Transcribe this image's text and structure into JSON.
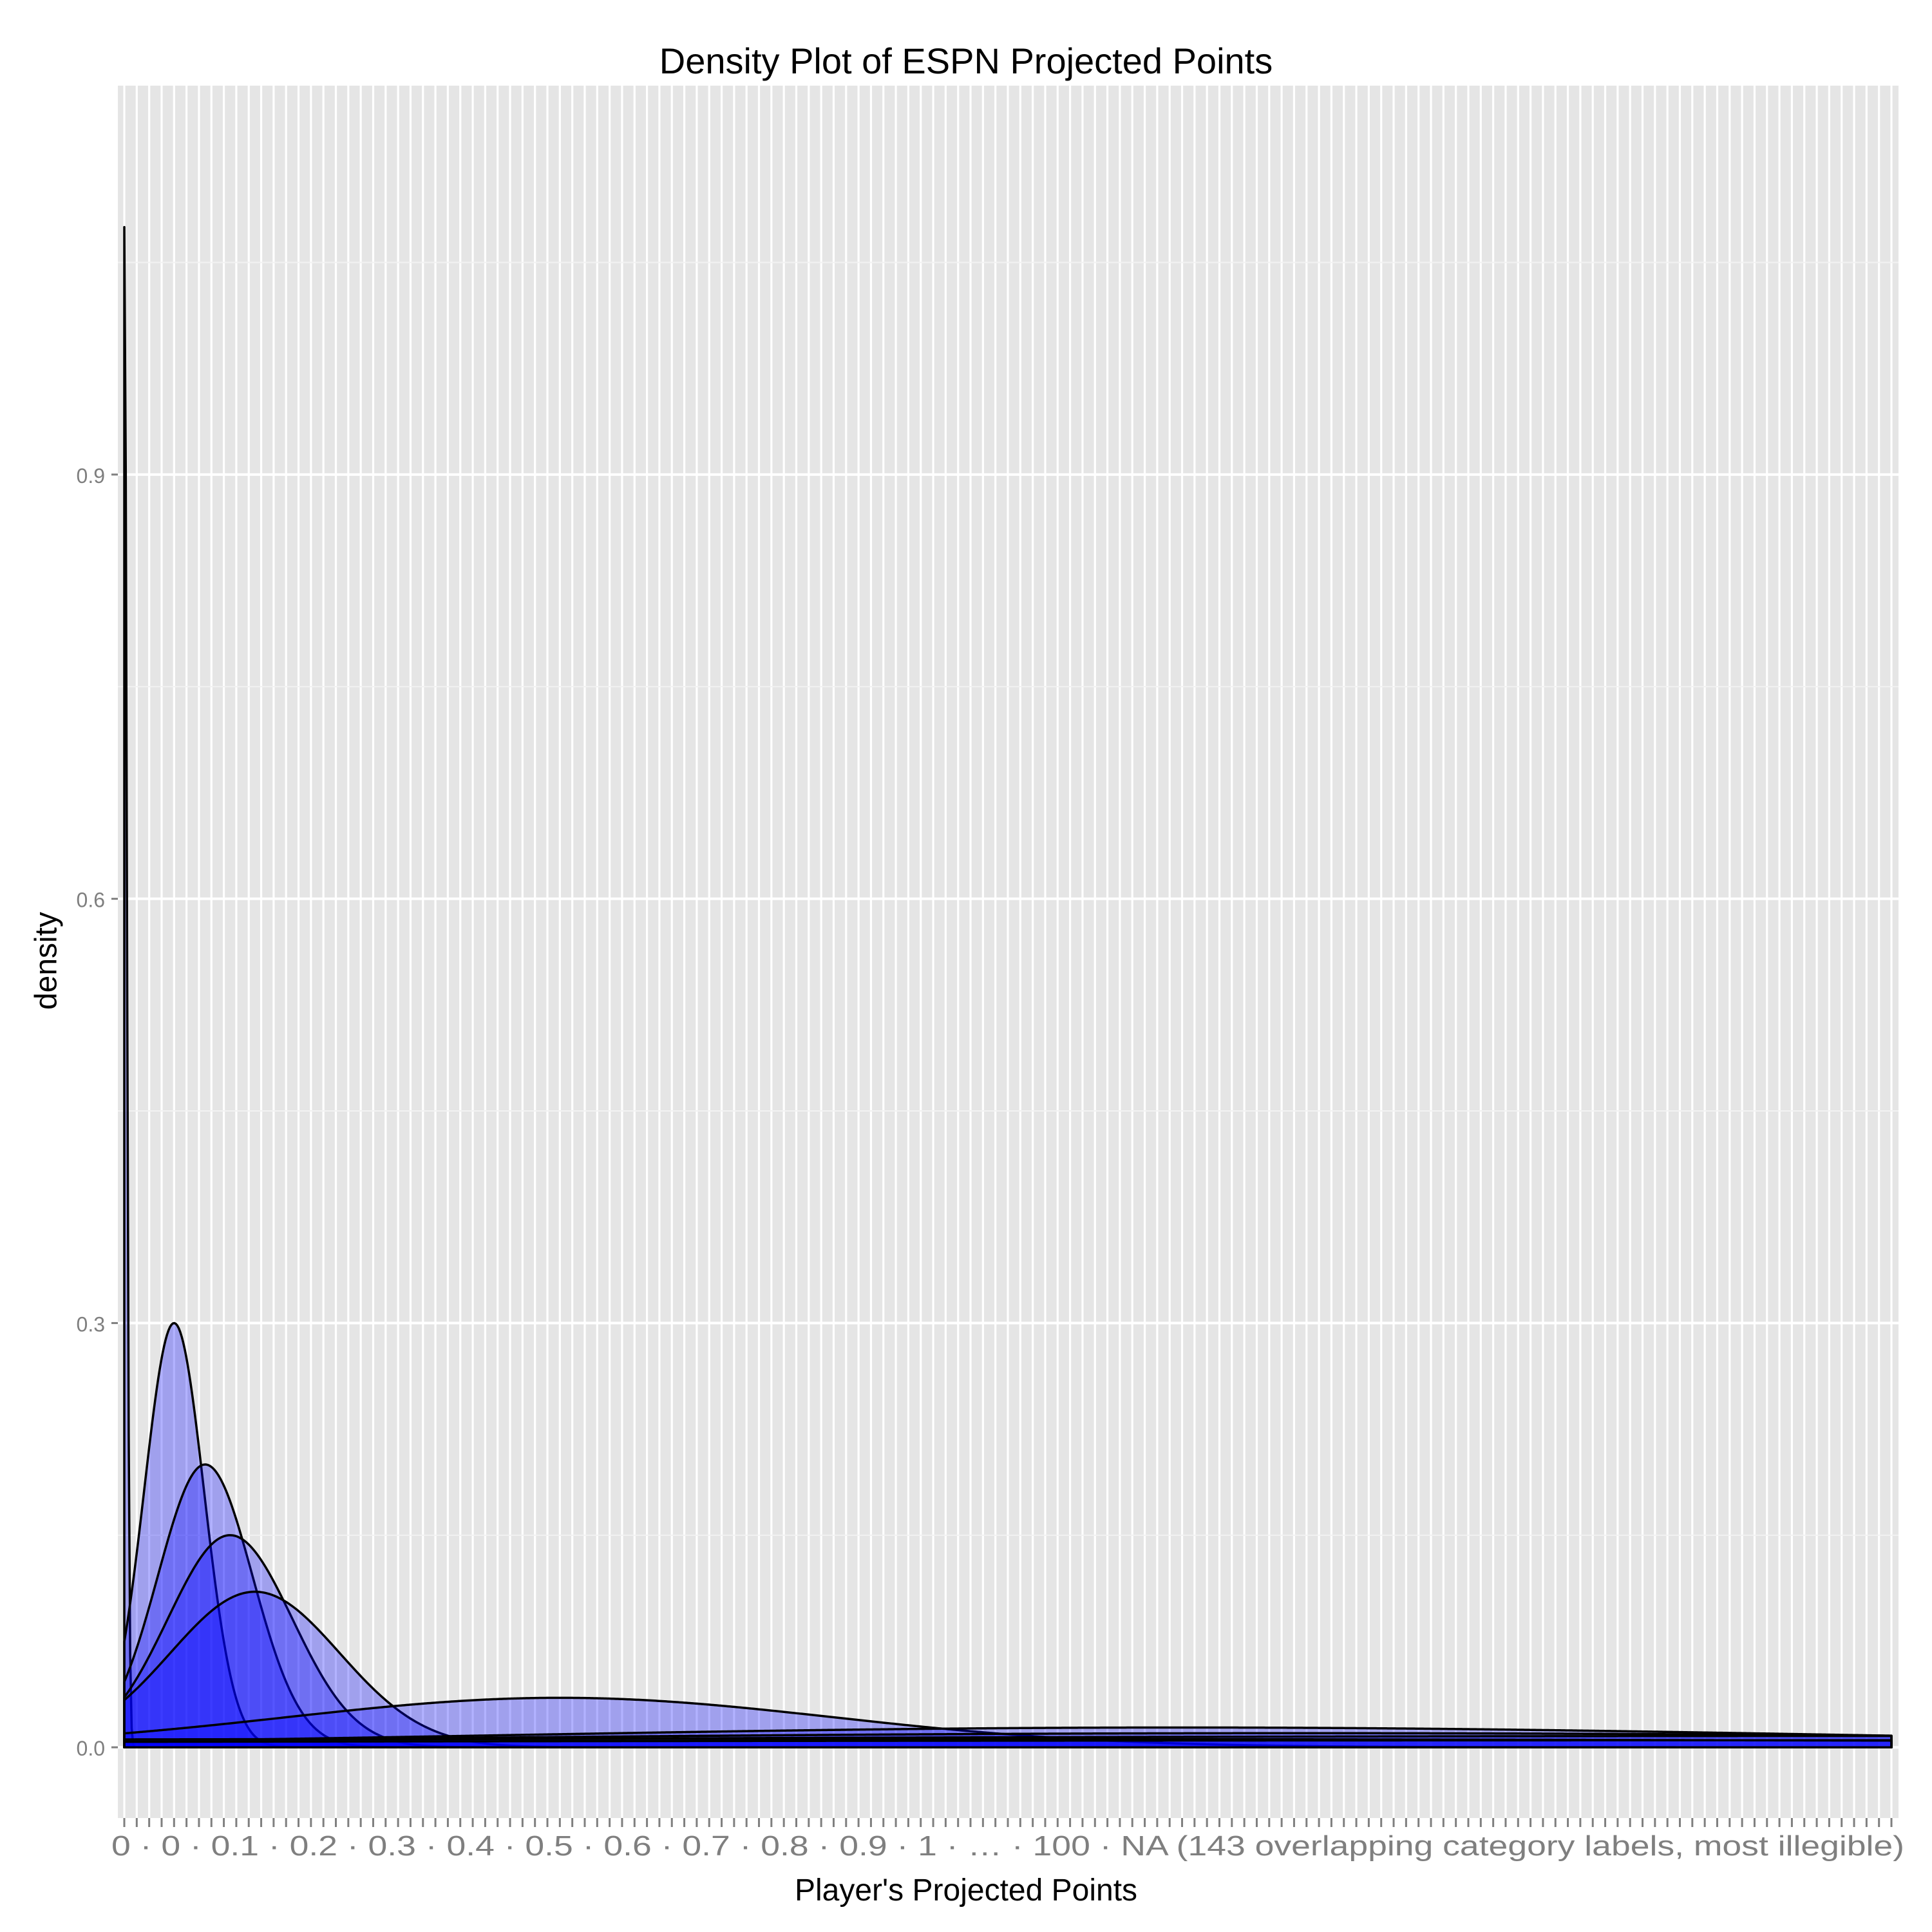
{
  "chart_data": {
    "type": "area",
    "title": "Density Plot of ESPN Projected Points",
    "xlabel": "Player's Projected Points",
    "ylabel": "density",
    "x_scale": "categorical",
    "x_category_count": 143,
    "x_tick_labels_visible": "0 · 0 · 0.1 · 0.2 · 0.3 · 0.4 · 0.5 · 0.6 · 0.7 · 0.8 · 0.9 · 1 · … · 100 · NA (143 overlapping category labels, most illegible)",
    "y_ticks": [
      0.0,
      0.3,
      0.6,
      0.9
    ],
    "y_tick_labels": [
      "0.0",
      "0.3",
      "0.6",
      "0.9"
    ],
    "ylim": [
      -0.05,
      1.175
    ],
    "grid": true,
    "legend": "none",
    "fill_color": "#0000ff",
    "fill_opacity": 0.3,
    "outline_color": "#000000",
    "panel_background": "#e5e5e5",
    "series": [
      {
        "peak_x": 0,
        "peak_density": 1.075,
        "sd": 0.2
      },
      {
        "peak_x": 4,
        "peak_density": 0.3,
        "sd": 2.4
      },
      {
        "peak_x": 6.5,
        "peak_density": 0.2,
        "sd": 3.8
      },
      {
        "peak_x": 8.5,
        "peak_density": 0.15,
        "sd": 5.0
      },
      {
        "peak_x": 10.5,
        "peak_density": 0.11,
        "sd": 6.8
      },
      {
        "peak_x": 35,
        "peak_density": 0.035,
        "sd": 22
      },
      {
        "peak_x": 85,
        "peak_density": 0.014,
        "sd": 55
      },
      {
        "peak_x": 95,
        "peak_density": 0.01,
        "sd": 75
      },
      {
        "peak_x": 140,
        "peak_density": 0.008,
        "sd": 140
      },
      {
        "peak_x": 50,
        "peak_density": 0.006,
        "sd": 130
      },
      {
        "peak_x": 142,
        "peak_density": 0.005,
        "sd": 200
      }
    ]
  }
}
